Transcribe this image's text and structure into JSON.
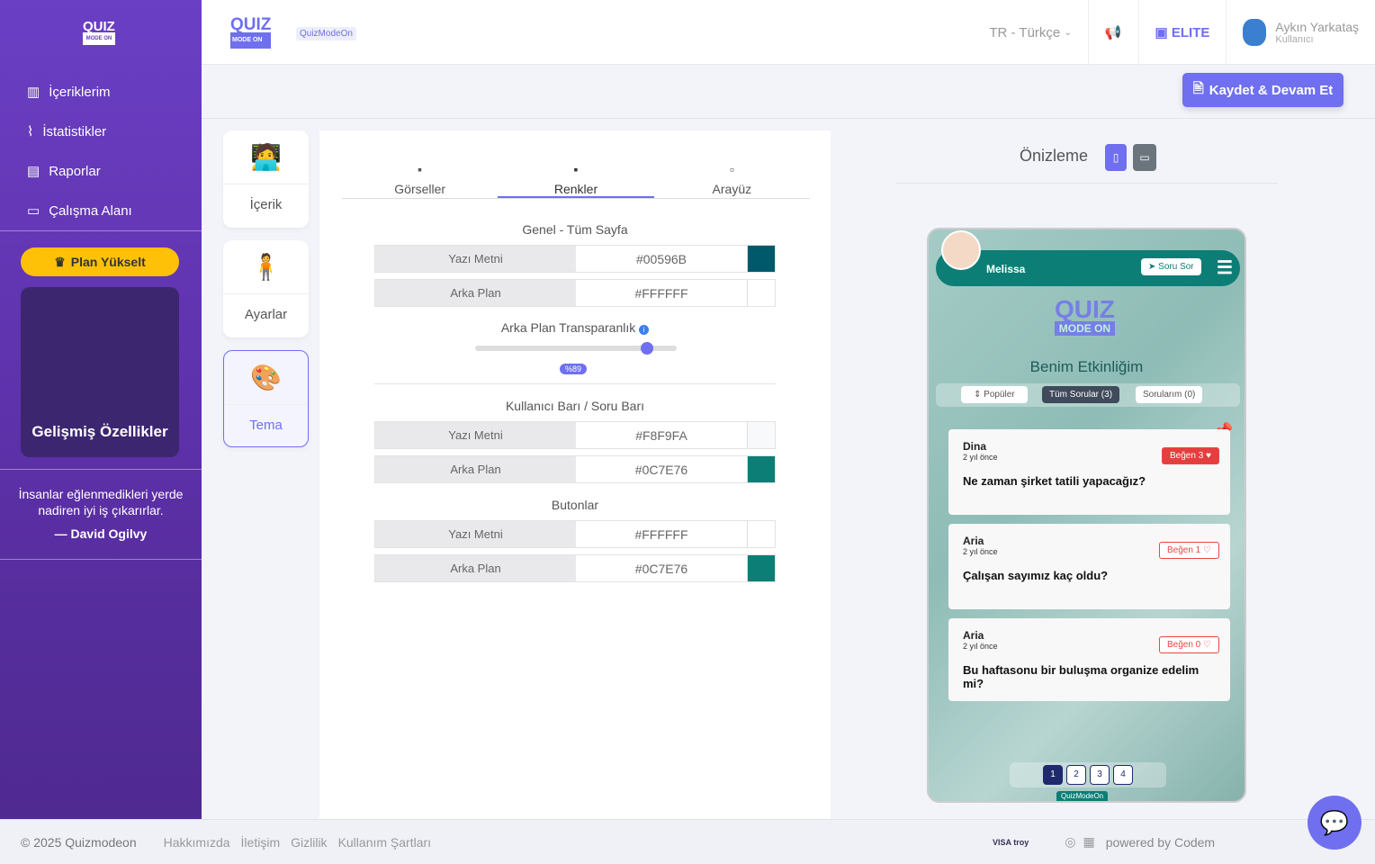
{
  "sidebar": {
    "logo": "QUIZ",
    "logo_sub": "MODE ON",
    "items": [
      {
        "label": "İçeriklerim",
        "icon": "library-icon"
      },
      {
        "label": "İstatistikler",
        "icon": "chart-line-icon"
      },
      {
        "label": "Raporlar",
        "icon": "report-icon"
      },
      {
        "label": "Çalışma Alanı",
        "icon": "briefcase-icon"
      }
    ],
    "plan_button": "Plan Yükselt",
    "advanced": "Gelişmiş Özellikler",
    "quote": "İnsanlar eğlenmedikleri yerde nadiren iyi iş çıkarırlar.",
    "quote_author": "— David Ogilvy"
  },
  "header": {
    "logo": "QUIZ",
    "logo_sub": "MODE ON",
    "badge": "QuizModeOn",
    "language": "TR - Türkçe",
    "plan": "ELITE",
    "user_name": "Aykın Yarkataş",
    "user_role": "Kullanıcı"
  },
  "save_button": "Kaydet & Devam Et",
  "side_tabs": [
    {
      "label": "İçerik"
    },
    {
      "label": "Ayarlar"
    },
    {
      "label": "Tema"
    }
  ],
  "editor": {
    "tabs": [
      "Görseller",
      "Renkler",
      "Arayüz"
    ],
    "active_tab": "Renkler",
    "sections": {
      "general": "Genel - Tüm Sayfa",
      "user_bar": "Kullanıcı Barı / Soru Barı",
      "buttons": "Butonlar"
    },
    "general_rows": [
      {
        "key": "Yazı Metni",
        "value": "#00596B"
      },
      {
        "key": "Arka Plan",
        "value": "#FFFFFF"
      }
    ],
    "transparency_label": "Arka Plan Transparanlık",
    "transparency_value": "%89",
    "transparency": 89,
    "user_bar_rows": [
      {
        "key": "Yazı Metni",
        "value": "#F8F9FA"
      },
      {
        "key": "Arka Plan",
        "value": "#0C7E76"
      }
    ],
    "button_rows": [
      {
        "key": "Yazı Metni",
        "value": "#FFFFFF"
      },
      {
        "key": "Arka Plan",
        "value": "#0C7E76"
      }
    ]
  },
  "preview": {
    "title": "Önizleme",
    "user": "Melissa",
    "ask_button": "Soru Sor",
    "logo": "QUIZ",
    "logo_sub": "MODE ON",
    "event_title": "Benim Etkinliğim",
    "filters": {
      "popular": "Popüler",
      "all": "Tüm Sorular",
      "all_count": "3",
      "mine": "Sorularım",
      "mine_count": "0"
    },
    "questions": [
      {
        "name": "Dina",
        "time": "2 yıl önce",
        "like": "Beğen 3",
        "text": "Ne zaman şirket tatili yapacağız?"
      },
      {
        "name": "Aria",
        "time": "2 yıl önce",
        "like": "Beğen 1",
        "text": "Çalışan sayımız kaç oldu?"
      },
      {
        "name": "Aria",
        "time": "2 yıl önce",
        "like": "Beğen 0",
        "text": "Bu haftasonu bir buluşma organize edelim mi?"
      }
    ],
    "pages": [
      "1",
      "2",
      "3",
      "4"
    ],
    "brand": "QuizModeOn"
  },
  "footer": {
    "copyright": "© 2025 Quizmodeon",
    "links": [
      "Hakkımızda",
      "İletişim",
      "Gizlilik",
      "Kullanım Şartları"
    ],
    "payments": "VISA  troy",
    "powered": "powered by Codem"
  }
}
